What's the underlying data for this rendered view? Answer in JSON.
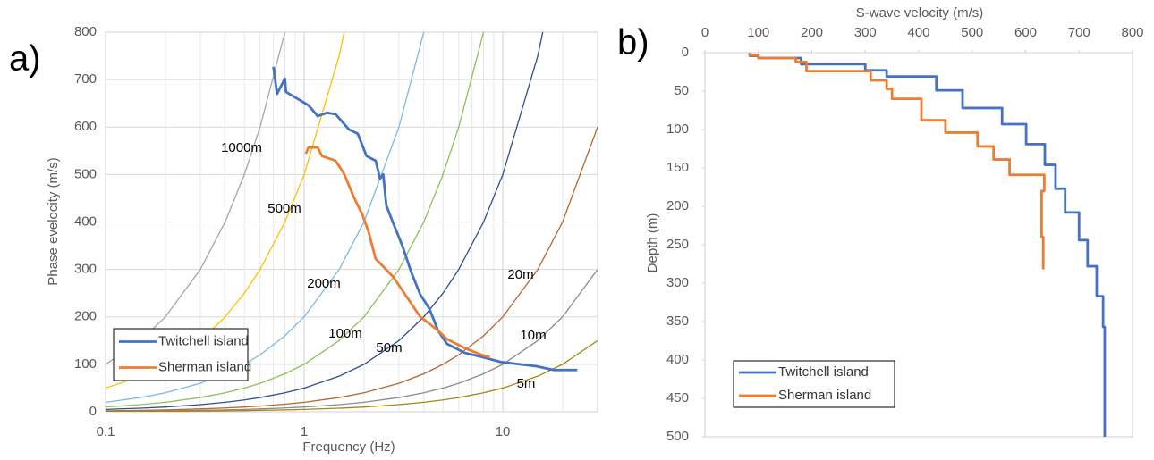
{
  "chart_data": [
    {
      "type": "line",
      "panel_label": "a)",
      "x_label": "Frequency (Hz)",
      "y_label": "Phase evelocity (m/s)",
      "xscale": "log",
      "xlim": [
        0.1,
        30
      ],
      "xticks": [
        0.1,
        1,
        10
      ],
      "xminor": [
        0.2,
        0.3,
        0.4,
        0.5,
        0.6,
        0.7,
        0.8,
        0.9,
        2,
        3,
        4,
        5,
        6,
        7,
        8,
        9,
        20
      ],
      "ylim": [
        0,
        800
      ],
      "yticks": [
        0,
        100,
        200,
        300,
        400,
        500,
        600,
        700,
        800
      ],
      "grid": true,
      "legend": "lower left",
      "series": [
        {
          "name": "Twitchell island",
          "color": "#4472c4",
          "x": [
            0.7,
            0.73,
            0.8,
            0.81,
            1.05,
            1.17,
            1.3,
            1.44,
            1.68,
            1.86,
            2.06,
            2.29,
            2.41,
            2.5,
            2.59,
            2.81,
            3.12,
            3.46,
            3.84,
            4.26,
            4.72,
            5.24,
            6.45,
            7.93,
            9.76,
            14.7,
            18.1,
            23.7
          ],
          "values": [
            727,
            670,
            702,
            674,
            646,
            623,
            630,
            627,
            595,
            586,
            539,
            529,
            491,
            500,
            435,
            397,
            350,
            294,
            247,
            218,
            171,
            143,
            124,
            115,
            105,
            96,
            88,
            88
          ]
        },
        {
          "name": "Sherman island",
          "color": "#ed7d31",
          "x": [
            1.02,
            1.05,
            1.17,
            1.23,
            1.44,
            1.59,
            1.77,
            1.96,
            2.11,
            2.29,
            2.54,
            2.81,
            3.12,
            3.46,
            3.84,
            4.26,
            4.72,
            5.24,
            6.45,
            7.93,
            8.6
          ],
          "values": [
            544,
            557,
            557,
            539,
            529,
            501,
            454,
            416,
            379,
            322,
            303,
            284,
            256,
            228,
            200,
            186,
            171,
            153,
            134,
            119,
            115
          ]
        }
      ],
      "reference_curves": [
        {
          "label": "1000m",
          "color": "#a5a5a5",
          "x": [
            0.1,
            0.15,
            0.2,
            0.3,
            0.4,
            0.5,
            0.6,
            0.8
          ],
          "values": [
            100,
            150,
            200,
            300,
            400,
            500,
            600,
            800
          ]
        },
        {
          "label": "500m",
          "color": "#ffc000",
          "x": [
            0.1,
            0.15,
            0.2,
            0.3,
            0.4,
            0.5,
            0.6,
            0.8,
            1,
            1.5,
            2
          ],
          "values": [
            50,
            75,
            100,
            150,
            200,
            250,
            300,
            400,
            500,
            750,
            1000
          ]
        },
        {
          "label": "200m",
          "color": "#7fb8e0",
          "x": [
            0.1,
            0.15,
            0.2,
            0.3,
            0.4,
            0.5,
            0.6,
            0.8,
            1,
            1.5,
            2,
            3,
            4
          ],
          "values": [
            20,
            30,
            40,
            60,
            80,
            100,
            120,
            160,
            200,
            300,
            400,
            600,
            800
          ]
        },
        {
          "label": "100m",
          "color": "#8fbf5a",
          "x": [
            0.1,
            0.15,
            0.2,
            0.3,
            0.4,
            0.5,
            0.6,
            0.8,
            1,
            1.5,
            2,
            3,
            4,
            5,
            6,
            8
          ],
          "values": [
            10,
            15,
            20,
            30,
            40,
            50,
            60,
            80,
            100,
            150,
            200,
            300,
            400,
            500,
            600,
            800
          ]
        },
        {
          "label": "50m",
          "color": "#2f4f8f",
          "x": [
            0.1,
            0.15,
            0.2,
            0.3,
            0.4,
            0.5,
            0.6,
            0.8,
            1,
            1.5,
            2,
            3,
            4,
            5,
            6,
            8,
            10,
            15,
            20
          ],
          "values": [
            5,
            7.5,
            10,
            15,
            20,
            25,
            30,
            40,
            50,
            75,
            100,
            150,
            200,
            250,
            300,
            400,
            500,
            750,
            1000
          ]
        },
        {
          "label": "20m",
          "color": "#b8652e",
          "x": [
            0.1,
            0.15,
            0.2,
            0.3,
            0.4,
            0.5,
            0.6,
            0.8,
            1,
            1.5,
            2,
            3,
            4,
            5,
            6,
            8,
            10,
            15,
            20,
            30
          ],
          "values": [
            2,
            3,
            4,
            6,
            8,
            10,
            12,
            16,
            20,
            30,
            40,
            60,
            80,
            100,
            120,
            160,
            200,
            300,
            400,
            600
          ]
        },
        {
          "label": "10m",
          "color": "#8c8c8c",
          "x": [
            0.1,
            0.15,
            0.2,
            0.3,
            0.4,
            0.5,
            0.6,
            0.8,
            1,
            1.5,
            2,
            3,
            4,
            5,
            6,
            8,
            10,
            15,
            20,
            30
          ],
          "values": [
            1,
            1.5,
            2,
            3,
            4,
            5,
            6,
            8,
            10,
            15,
            20,
            30,
            40,
            50,
            60,
            80,
            100,
            150,
            200,
            300
          ]
        },
        {
          "label": "5m",
          "color": "#a5870f",
          "x": [
            0.1,
            0.15,
            0.2,
            0.3,
            0.4,
            0.5,
            0.6,
            0.8,
            1,
            1.5,
            2,
            3,
            4,
            5,
            6,
            8,
            10,
            15,
            20,
            30
          ],
          "values": [
            0.5,
            0.75,
            1,
            1.5,
            2,
            2.5,
            3,
            4,
            5,
            7.5,
            10,
            15,
            20,
            25,
            30,
            40,
            50,
            75,
            100,
            150
          ]
        }
      ]
    },
    {
      "type": "line",
      "panel_label": "b)",
      "x_label": "S-wave velocity (m/s)",
      "y_label": "Depth (m)",
      "xaxis_position": "top",
      "y_inverted": true,
      "xlim": [
        0,
        800
      ],
      "xticks": [
        0,
        100,
        200,
        300,
        400,
        500,
        600,
        700,
        800
      ],
      "ylim": [
        0,
        500
      ],
      "yticks": [
        0,
        50,
        100,
        150,
        200,
        250,
        300,
        350,
        400,
        450,
        500
      ],
      "grid": false,
      "legend": "lower left",
      "series": [
        {
          "name": "Twitchell island",
          "color": "#4472c4",
          "x": [
            84,
            84,
            100,
            100,
            180,
            180,
            300,
            300,
            340,
            340,
            433,
            433,
            482,
            482,
            556,
            556,
            601,
            601,
            636,
            636,
            656,
            656,
            674,
            674,
            700,
            700,
            716,
            716,
            733,
            733,
            745,
            745,
            748,
            748
          ],
          "values": [
            0,
            4,
            4,
            7,
            7,
            15,
            15,
            23,
            23,
            31,
            31,
            49,
            49,
            72,
            72,
            93,
            93,
            119,
            119,
            146,
            146,
            177,
            177,
            208,
            208,
            244,
            244,
            278,
            278,
            317,
            317,
            357,
            357,
            500
          ]
        },
        {
          "name": "Sherman island",
          "color": "#ed7d31",
          "x": [
            84,
            84,
            100,
            100,
            170,
            170,
            190,
            190,
            310,
            310,
            340,
            340,
            350,
            350,
            405,
            405,
            450,
            450,
            510,
            510,
            540,
            540,
            570,
            570,
            635,
            635,
            630,
            630,
            633,
            633
          ],
          "values": [
            0,
            3,
            3,
            7,
            7,
            12,
            12,
            24,
            24,
            36,
            36,
            47,
            47,
            60,
            60,
            88,
            88,
            104,
            104,
            122,
            122,
            139,
            139,
            159,
            159,
            180,
            180,
            240,
            240,
            282
          ]
        }
      ]
    }
  ]
}
